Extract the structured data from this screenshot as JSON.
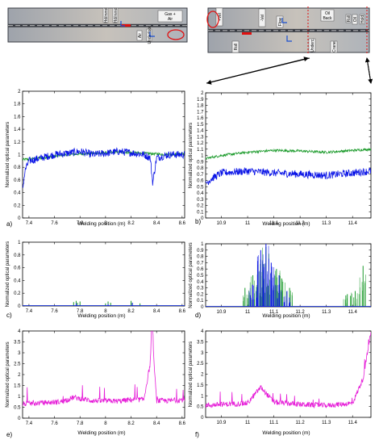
{
  "photos": {
    "left": {
      "labels": [
        "Gas +\nAir",
        "Hd/mmd",
        "Hd/mmd",
        "Air",
        "Underfoot"
      ]
    },
    "right": {
      "labels": [
        "+Vel",
        "-Vel",
        "Oil\nBack",
        "Flow",
        "Roll",
        "Oil",
        "Hold",
        "Underc.",
        "Crane",
        "Roll"
      ]
    }
  },
  "colors": {
    "green": "#1a9a2a",
    "blue": "#0a14e6",
    "magenta": "#e61ed8",
    "photo_metal": "#a9aeb6",
    "photo_edge": "#3a3d44",
    "red_marker": "#e01010",
    "label_box": "#f2f2f2"
  },
  "chart_data": [
    {
      "panel": "a)",
      "type": "line",
      "xlabel": "Welding position (m)",
      "ylabel": "Normalized optical parameters",
      "xlim": [
        7.35,
        8.62
      ],
      "ylim": [
        0,
        2
      ],
      "xticks": [
        "7.4",
        "7.6",
        "7.8",
        "8",
        "8.2",
        "8.4",
        "8.6"
      ],
      "yticks": [
        "0",
        "0.2",
        "0.4",
        "0.6",
        "0.8",
        "1",
        "1.2",
        "1.4",
        "1.6",
        "1.8",
        "2"
      ],
      "series": [
        {
          "color": "green",
          "x": [
            7.35,
            7.5,
            7.7,
            7.9,
            8.1,
            8.3,
            8.5,
            8.62
          ],
          "y": [
            0.92,
            0.95,
            1.0,
            1.02,
            1.04,
            1.02,
            1.0,
            1.02
          ]
        },
        {
          "color": "blue",
          "x": [
            7.35,
            7.37,
            7.4,
            7.5,
            7.6,
            7.7,
            7.8,
            7.9,
            8.0,
            8.1,
            8.2,
            8.3,
            8.35,
            8.37,
            8.4,
            8.5,
            8.62
          ],
          "y": [
            0.45,
            0.75,
            0.9,
            0.95,
            1.0,
            1.02,
            1.05,
            1.0,
            1.02,
            1.05,
            1.03,
            1.0,
            0.95,
            0.55,
            0.95,
            1.0,
            1.0
          ]
        }
      ]
    },
    {
      "panel": "b)",
      "type": "line",
      "xlabel": "Welding position (m)",
      "ylabel": "Normalized optical parameters",
      "xlim": [
        10.84,
        11.47
      ],
      "ylim": [
        0,
        2
      ],
      "xticks": [
        "10.9",
        "11",
        "11.1",
        "11.2",
        "11.3",
        "11.4"
      ],
      "yticks": [
        "0",
        "0.1",
        "0.2",
        "0.3",
        "0.4",
        "0.5",
        "0.6",
        "0.7",
        "0.8",
        "0.9",
        "1",
        "1.1",
        "1.2",
        "1.3",
        "1.4",
        "1.5",
        "1.6",
        "1.7",
        "1.8",
        "1.9",
        "2"
      ],
      "series": [
        {
          "color": "green",
          "x": [
            10.84,
            10.9,
            11.0,
            11.1,
            11.2,
            11.3,
            11.4,
            11.47
          ],
          "y": [
            0.95,
            1.0,
            1.05,
            1.08,
            1.07,
            1.05,
            1.08,
            1.1
          ]
        },
        {
          "color": "blue",
          "x": [
            10.84,
            10.86,
            10.9,
            11.0,
            11.1,
            11.2,
            11.3,
            11.4,
            11.47
          ],
          "y": [
            0.55,
            0.62,
            0.72,
            0.75,
            0.72,
            0.7,
            0.68,
            0.72,
            0.75
          ]
        }
      ]
    },
    {
      "panel": "c)",
      "type": "line",
      "xlabel": "Welding position (m)",
      "ylabel": "Normalized optical parameters",
      "xlim": [
        7.35,
        8.62
      ],
      "ylim": [
        0,
        1
      ],
      "xticks": [
        "7.4",
        "7.6",
        "7.8",
        "8",
        "8.2",
        "8.4",
        "8.6"
      ],
      "yticks": [
        "0",
        "0.2",
        "0.4",
        "0.6",
        "0.8",
        "1"
      ],
      "series": [
        {
          "color": "green",
          "x": [
            7.75,
            7.77,
            7.78,
            7.8,
            8.0,
            8.02,
            8.04,
            8.2,
            8.21,
            8.27
          ],
          "y": [
            0.06,
            0.08,
            0.05,
            0.07,
            0.04,
            0.07,
            0.05,
            0.08,
            0.05,
            0.04
          ]
        },
        {
          "color": "blue",
          "x": [
            7.77,
            8.02,
            8.21
          ],
          "y": [
            0.04,
            0.03,
            0.05
          ]
        }
      ]
    },
    {
      "panel": "d)",
      "type": "line",
      "xlabel": "Welding position (m)",
      "ylabel": "Normalized optical parameters",
      "xlim": [
        10.84,
        11.47
      ],
      "ylim": [
        0,
        1
      ],
      "xticks": [
        "10.9",
        "11",
        "11.1",
        "11.2",
        "11.3",
        "11.4"
      ],
      "yticks": [
        "0",
        "0.1",
        "0.2",
        "0.3",
        "0.4",
        "0.5",
        "0.6",
        "0.7",
        "0.8",
        "0.9",
        "1"
      ],
      "series": [
        {
          "color": "green",
          "x": [
            10.99,
            11.02,
            11.05,
            11.07,
            11.09,
            11.11,
            11.13,
            11.16,
            11.38,
            11.41,
            11.44
          ],
          "y": [
            0.3,
            0.5,
            0.75,
            0.95,
            0.55,
            0.6,
            0.45,
            0.3,
            0.2,
            0.25,
            0.65
          ]
        },
        {
          "color": "blue",
          "x": [
            11.02,
            11.05,
            11.07,
            11.09,
            11.12,
            11.15
          ],
          "y": [
            0.35,
            0.9,
            1.0,
            0.7,
            0.5,
            0.25
          ]
        }
      ]
    },
    {
      "panel": "e)",
      "type": "line",
      "xlabel": "Welding position (m)",
      "ylabel": "Normalized optical parameters",
      "xlim": [
        7.35,
        8.62
      ],
      "ylim": [
        0,
        4
      ],
      "xticks": [
        "7.4",
        "7.6",
        "7.8",
        "8",
        "8.2",
        "8.4",
        "8.6"
      ],
      "yticks": [
        "0",
        "0.5",
        "1",
        "1.5",
        "2",
        "2.5",
        "3",
        "3.5",
        "4"
      ],
      "series": [
        {
          "color": "magenta",
          "x": [
            7.35,
            7.5,
            7.65,
            7.75,
            7.9,
            8.1,
            8.2,
            8.3,
            8.35,
            8.36,
            8.37,
            8.38,
            8.4,
            8.5,
            8.62
          ],
          "y": [
            0.65,
            0.7,
            0.75,
            0.95,
            0.8,
            0.78,
            0.85,
            0.85,
            2.5,
            4.0,
            4.0,
            2.5,
            0.8,
            0.8,
            0.85
          ]
        }
      ]
    },
    {
      "panel": "f)",
      "type": "line",
      "xlabel": "Welding position (m)",
      "ylabel": "Normalized optical parameters",
      "xlim": [
        10.84,
        11.47
      ],
      "ylim": [
        0,
        4
      ],
      "xticks": [
        "10.9",
        "11",
        "11.1",
        "11.2",
        "11.3",
        "11.4"
      ],
      "yticks": [
        "0",
        "0.5",
        "1",
        "1.5",
        "2",
        "2.5",
        "3",
        "3.5",
        "4"
      ],
      "series": [
        {
          "color": "magenta",
          "x": [
            10.84,
            10.9,
            11.0,
            11.05,
            11.1,
            11.2,
            11.3,
            11.4,
            11.44,
            11.47
          ],
          "y": [
            0.55,
            0.6,
            0.65,
            1.4,
            0.7,
            0.6,
            0.55,
            0.65,
            1.8,
            3.9
          ]
        }
      ]
    }
  ]
}
